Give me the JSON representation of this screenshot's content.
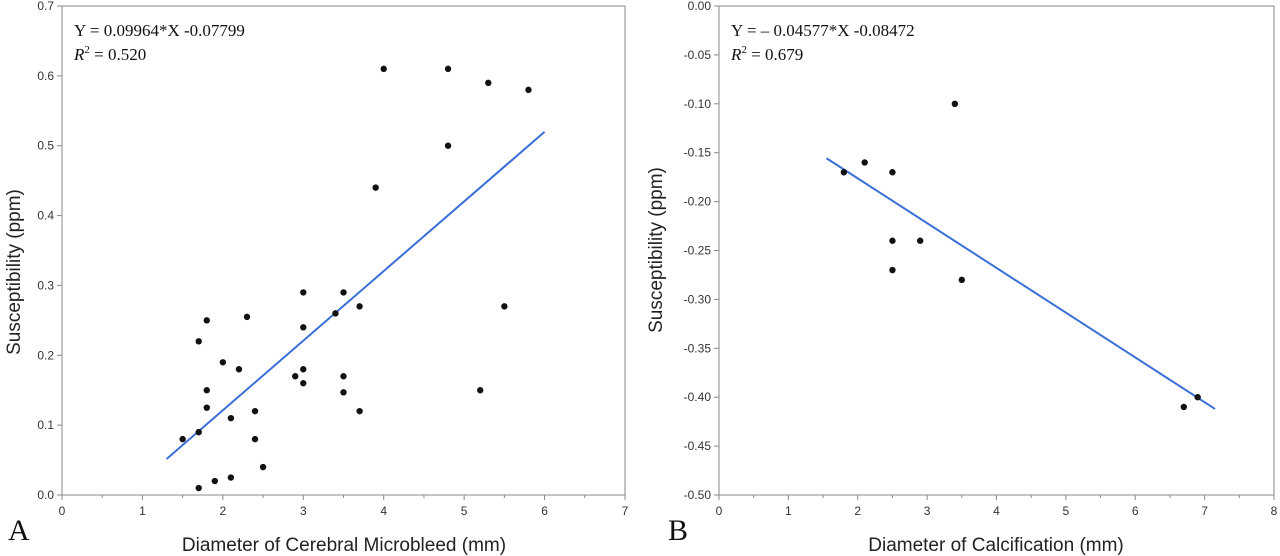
{
  "chart_data": [
    {
      "type": "scatter",
      "panel_label": "A",
      "xlabel": "Diameter of Cerebral Microbleed (mm)",
      "ylabel": "Susceptibility (ppm)",
      "xlim": [
        0,
        7
      ],
      "ylim": [
        0,
        0.7
      ],
      "x_ticks": [
        0,
        1,
        2,
        3,
        4,
        5,
        6,
        7
      ],
      "y_ticks": [
        0.0,
        0.1,
        0.2,
        0.3,
        0.4,
        0.5,
        0.6,
        0.7
      ],
      "x_tick_labels": [
        "0",
        "1",
        "2",
        "3",
        "4",
        "5",
        "6",
        "7"
      ],
      "y_tick_labels": [
        "0.0",
        "0.1",
        "0.2",
        "0.3",
        "0.4",
        "0.5",
        "0.6",
        "0.7"
      ],
      "equation": "Y = 0.09964*X -0.07799",
      "r2_label": "R",
      "r2_exponent": "2",
      "r2_value": " = 0.520",
      "fit": {
        "slope": 0.09964,
        "intercept": -0.07799,
        "x_range": [
          1.3,
          6.0
        ],
        "color": "#3a6fd8"
      },
      "points": [
        {
          "x": 1.5,
          "y": 0.08
        },
        {
          "x": 1.7,
          "y": 0.22
        },
        {
          "x": 1.7,
          "y": 0.09
        },
        {
          "x": 1.7,
          "y": 0.01
        },
        {
          "x": 1.8,
          "y": 0.25
        },
        {
          "x": 1.8,
          "y": 0.15
        },
        {
          "x": 1.8,
          "y": 0.125
        },
        {
          "x": 1.9,
          "y": 0.02
        },
        {
          "x": 2.0,
          "y": 0.19
        },
        {
          "x": 2.1,
          "y": 0.11
        },
        {
          "x": 2.1,
          "y": 0.025
        },
        {
          "x": 2.2,
          "y": 0.18
        },
        {
          "x": 2.3,
          "y": 0.255
        },
        {
          "x": 2.4,
          "y": 0.12
        },
        {
          "x": 2.4,
          "y": 0.08
        },
        {
          "x": 2.5,
          "y": 0.04
        },
        {
          "x": 2.9,
          "y": 0.17
        },
        {
          "x": 3.0,
          "y": 0.29
        },
        {
          "x": 3.0,
          "y": 0.24
        },
        {
          "x": 3.0,
          "y": 0.18
        },
        {
          "x": 3.0,
          "y": 0.16
        },
        {
          "x": 3.4,
          "y": 0.26
        },
        {
          "x": 3.5,
          "y": 0.29
        },
        {
          "x": 3.5,
          "y": 0.17
        },
        {
          "x": 3.5,
          "y": 0.147
        },
        {
          "x": 3.7,
          "y": 0.27
        },
        {
          "x": 3.7,
          "y": 0.12
        },
        {
          "x": 3.9,
          "y": 0.44
        },
        {
          "x": 4.0,
          "y": 0.61
        },
        {
          "x": 4.8,
          "y": 0.61
        },
        {
          "x": 4.8,
          "y": 0.5
        },
        {
          "x": 5.2,
          "y": 0.15
        },
        {
          "x": 5.3,
          "y": 0.59
        },
        {
          "x": 5.5,
          "y": 0.27
        },
        {
          "x": 5.8,
          "y": 0.58
        }
      ]
    },
    {
      "type": "scatter",
      "panel_label": "B",
      "xlabel": "Diameter of Calcification (mm)",
      "ylabel": "Susceptibility (ppm)",
      "xlim": [
        0,
        8
      ],
      "ylim": [
        -0.5,
        0.0
      ],
      "x_ticks": [
        0,
        1,
        2,
        3,
        4,
        5,
        6,
        7,
        8
      ],
      "y_ticks": [
        0.0,
        -0.05,
        -0.1,
        -0.15,
        -0.2,
        -0.25,
        -0.3,
        -0.35,
        -0.4,
        -0.45,
        -0.5
      ],
      "x_tick_labels": [
        "0",
        "1",
        "2",
        "3",
        "4",
        "5",
        "6",
        "7",
        "8"
      ],
      "y_tick_labels": [
        "0.00",
        "-0.05",
        "-0.10",
        "-0.15",
        "-0.20",
        "-0.25",
        "-0.30",
        "-0.35",
        "-0.40",
        "-0.45",
        "-0.50"
      ],
      "equation": "Y = – 0.04577*X  -0.08472",
      "r2_label": "R",
      "r2_exponent": "2",
      "r2_value": " = 0.679",
      "fit": {
        "slope": -0.04577,
        "intercept": -0.08472,
        "x_range": [
          1.55,
          7.15
        ],
        "color": "#3a6fd8"
      },
      "points": [
        {
          "x": 1.8,
          "y": -0.17
        },
        {
          "x": 2.1,
          "y": -0.16
        },
        {
          "x": 2.5,
          "y": -0.17
        },
        {
          "x": 2.5,
          "y": -0.24
        },
        {
          "x": 2.5,
          "y": -0.27
        },
        {
          "x": 2.9,
          "y": -0.24
        },
        {
          "x": 3.4,
          "y": -0.1
        },
        {
          "x": 3.5,
          "y": -0.28
        },
        {
          "x": 6.7,
          "y": -0.41
        },
        {
          "x": 6.9,
          "y": -0.4
        }
      ]
    }
  ]
}
